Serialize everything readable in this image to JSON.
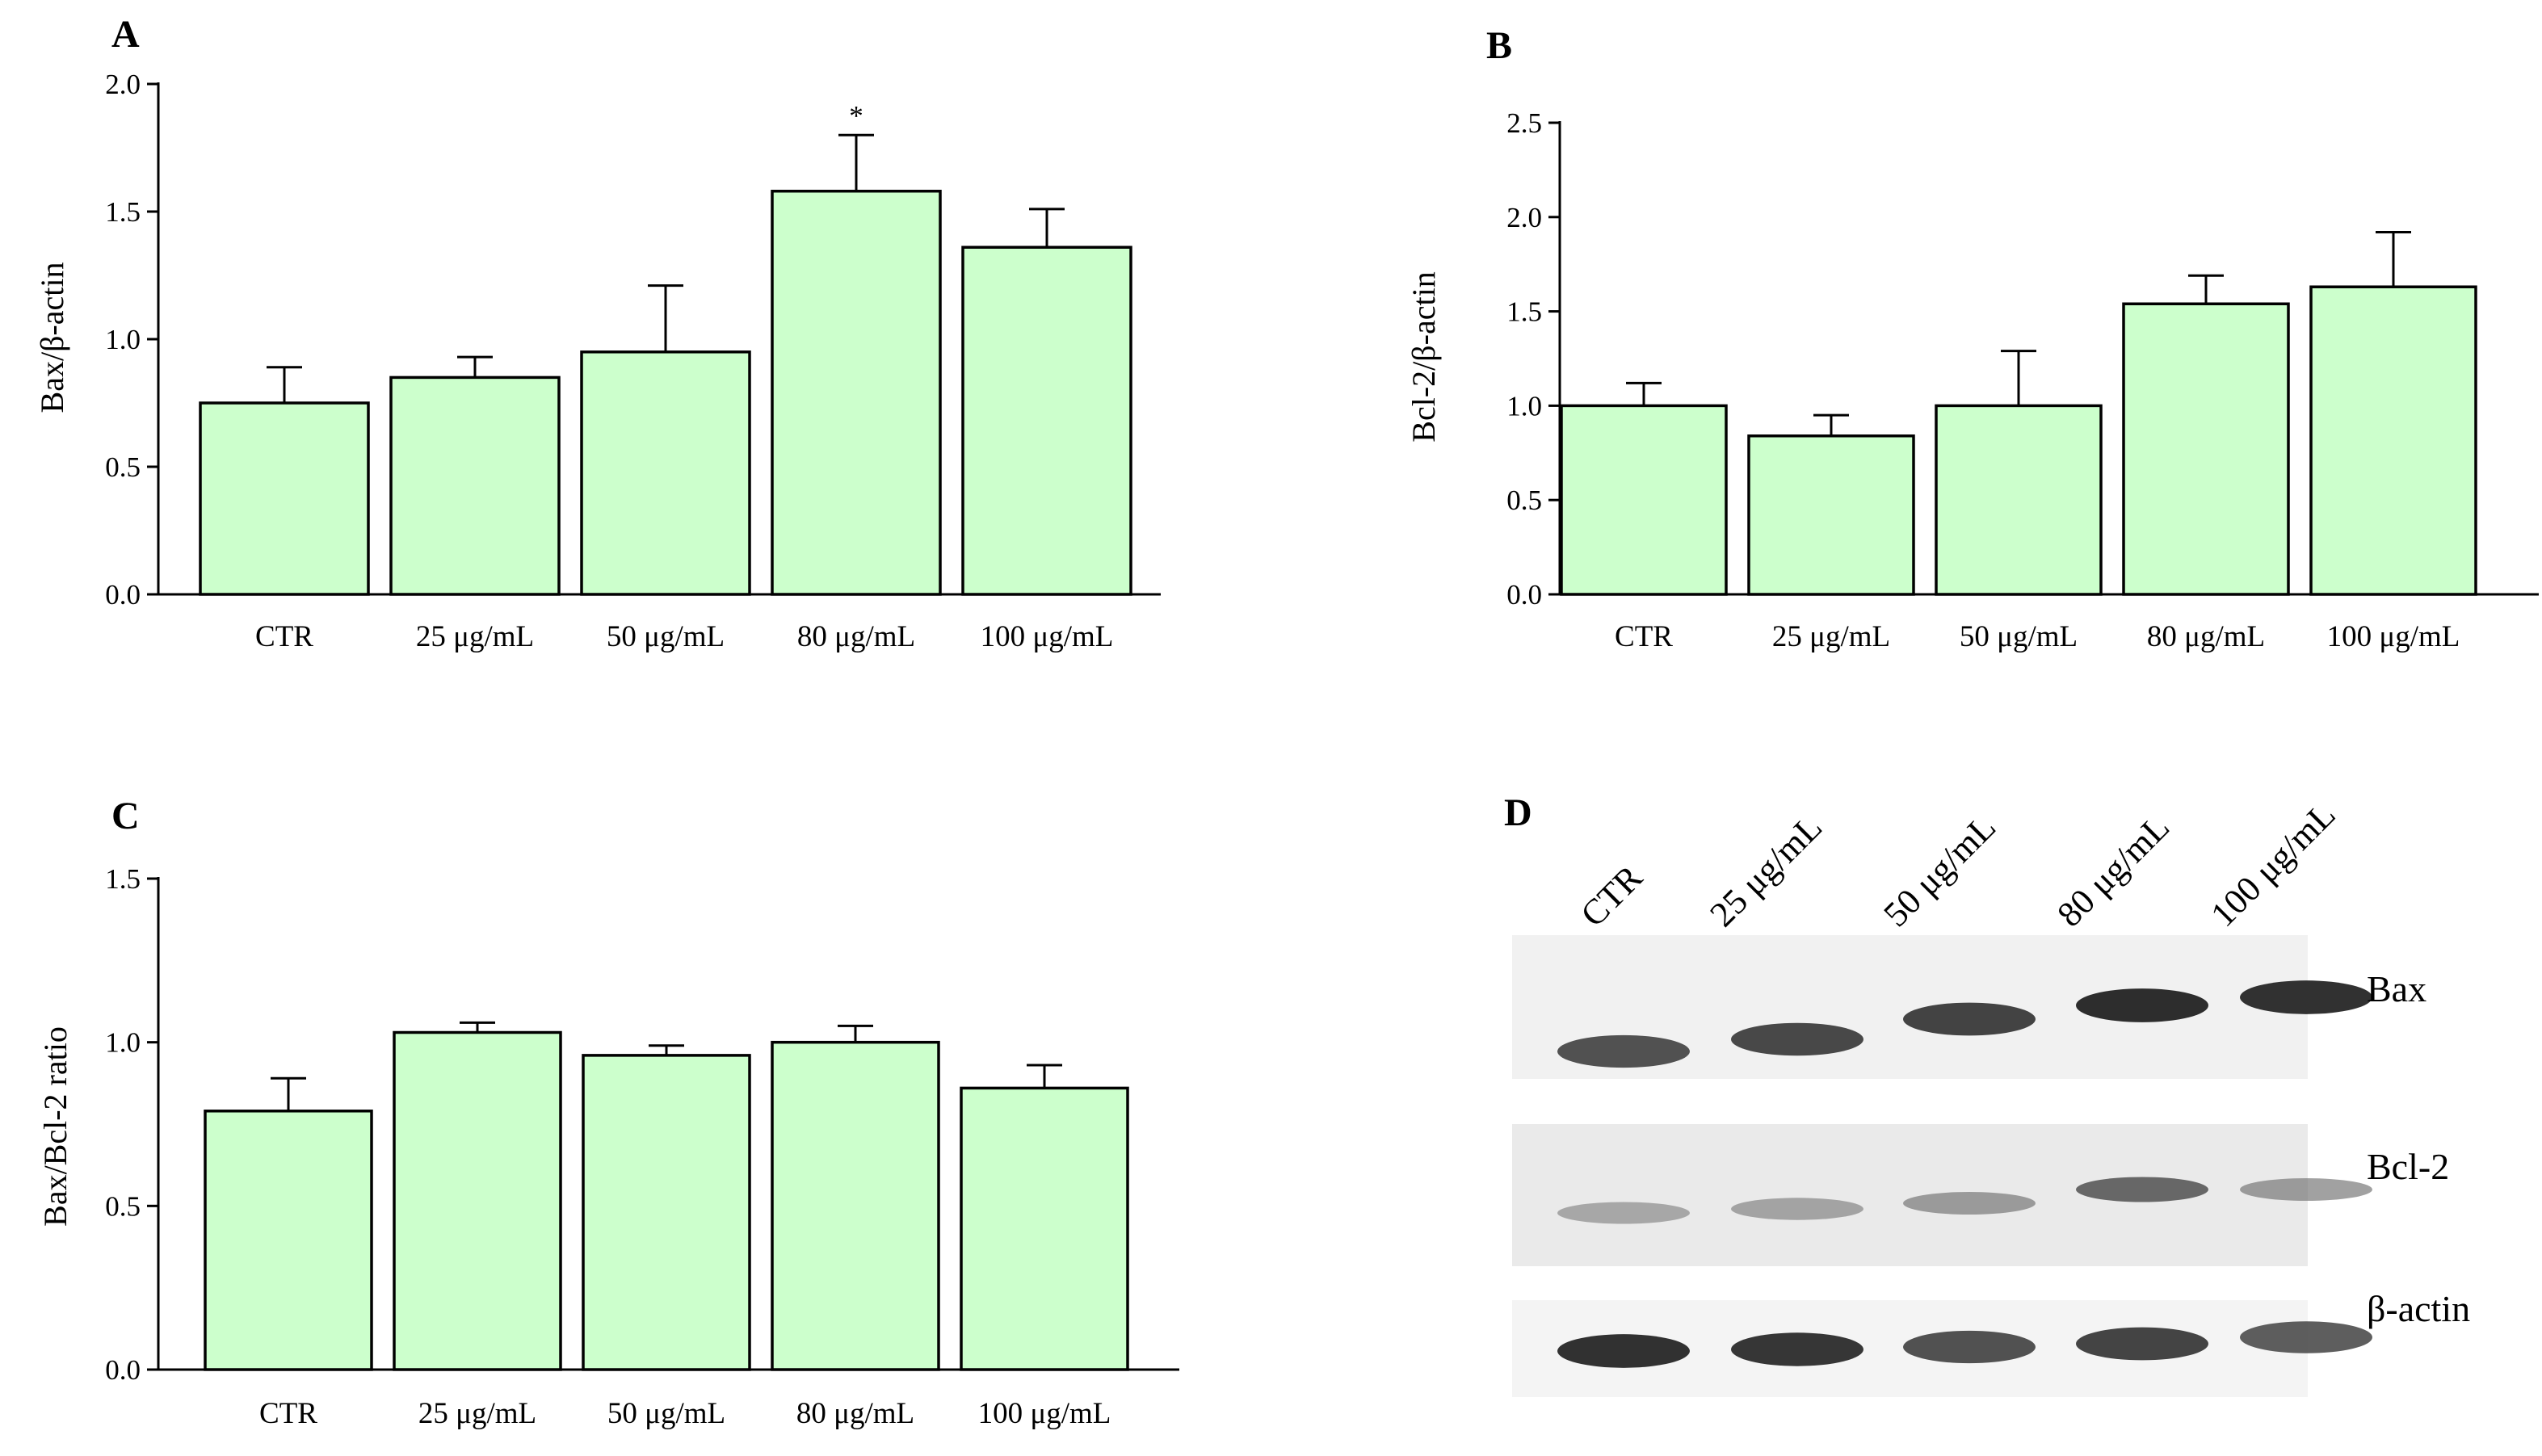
{
  "chart_data": [
    {
      "panel": "A",
      "type": "bar",
      "categories": [
        "CTR",
        "25 μg/mL",
        "50 μg/mL",
        "80 μg/mL",
        "100 μg/mL"
      ],
      "values": [
        0.75,
        0.85,
        0.95,
        1.58,
        1.36
      ],
      "errors": [
        0.14,
        0.08,
        0.26,
        0.22,
        0.15
      ],
      "annotations": [
        "",
        "",
        "",
        "*",
        ""
      ],
      "ylabel": "Bax/β-actin",
      "xlabel": "",
      "ylim": [
        0,
        2.0
      ],
      "yticks": [
        "0.0",
        "0.5",
        "1.0",
        "1.5",
        "2.0"
      ],
      "bar_color": "#ccffcc",
      "grid": false
    },
    {
      "panel": "B",
      "type": "bar",
      "categories": [
        "CTR",
        "25 μg/mL",
        "50 μg/mL",
        "80 μg/mL",
        "100 μg/mL"
      ],
      "values": [
        1.0,
        0.84,
        1.0,
        1.54,
        1.63
      ],
      "errors": [
        0.12,
        0.11,
        0.29,
        0.15,
        0.29
      ],
      "annotations": [
        "",
        "",
        "",
        "",
        ""
      ],
      "ylabel": "Bcl-2/β-actin",
      "xlabel": "",
      "ylim": [
        0,
        2.5
      ],
      "yticks": [
        "0.0",
        "0.5",
        "1.0",
        "1.5",
        "2.0",
        "2.5"
      ],
      "bar_color": "#ccffcc",
      "grid": false
    },
    {
      "panel": "C",
      "type": "bar",
      "categories": [
        "CTR",
        "25 μg/mL",
        "50 μg/mL",
        "80 μg/mL",
        "100 μg/mL"
      ],
      "values": [
        0.79,
        1.03,
        0.96,
        1.0,
        0.86
      ],
      "errors": [
        0.1,
        0.03,
        0.03,
        0.05,
        0.07
      ],
      "annotations": [
        "",
        "",
        "",
        "",
        ""
      ],
      "ylabel": "Bax/Bcl-2 ratio",
      "xlabel": "",
      "ylim": [
        0,
        1.5
      ],
      "yticks": [
        "0.0",
        "0.5",
        "1.0",
        "1.5"
      ],
      "bar_color": "#ccffcc",
      "grid": false
    }
  ],
  "blot": {
    "panel": "D",
    "lanes": [
      "CTR",
      "25 μg/mL",
      "50 μg/mL",
      "80 μg/mL",
      "100 μg/mL"
    ],
    "rows": [
      {
        "label": "Bax",
        "intensity": [
          0.85,
          0.88,
          0.9,
          0.98,
          0.97
        ]
      },
      {
        "label": "Bcl-2",
        "intensity": [
          0.42,
          0.45,
          0.5,
          0.75,
          0.5
        ]
      },
      {
        "label": "β-actin",
        "intensity": [
          0.97,
          0.95,
          0.85,
          0.9,
          0.8
        ]
      }
    ]
  }
}
